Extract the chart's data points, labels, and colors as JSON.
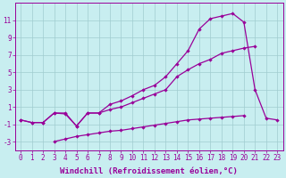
{
  "xlabel": "Windchill (Refroidissement éolien,°C)",
  "background_color": "#c8eef0",
  "grid_color": "#a0ccd0",
  "line_color": "#990099",
  "x": [
    0,
    1,
    2,
    3,
    4,
    5,
    6,
    7,
    8,
    9,
    10,
    11,
    12,
    13,
    14,
    15,
    16,
    17,
    18,
    19,
    20,
    21,
    22,
    23
  ],
  "line_bottom": [
    null,
    null,
    null,
    -3.0,
    -2.7,
    -2.4,
    -2.2,
    -2.0,
    -1.8,
    -1.7,
    -1.5,
    -1.3,
    -1.1,
    -0.9,
    -0.7,
    -0.5,
    -0.4,
    -0.3,
    -0.2,
    -0.1,
    0.0,
    null,
    null,
    null
  ],
  "line_mid": [
    -0.5,
    -0.8,
    -0.8,
    0.3,
    0.2,
    -1.2,
    0.3,
    0.3,
    0.7,
    1.0,
    1.5,
    2.0,
    2.5,
    3.0,
    4.5,
    5.3,
    6.0,
    6.5,
    7.2,
    7.5,
    7.8,
    8.0,
    null,
    null
  ],
  "line_top": [
    -0.5,
    -0.8,
    -0.8,
    0.3,
    0.3,
    -1.2,
    0.3,
    0.3,
    1.3,
    1.7,
    2.3,
    3.0,
    3.5,
    4.5,
    6.0,
    7.5,
    10.0,
    11.2,
    11.5,
    11.8,
    10.8,
    3.0,
    -0.3,
    -0.5
  ],
  "ylim": [
    -4.0,
    13.0
  ],
  "xlim": [
    -0.5,
    23.5
  ],
  "yticks": [
    -3,
    -1,
    1,
    3,
    5,
    7,
    9,
    11
  ],
  "xticks": [
    0,
    1,
    2,
    3,
    4,
    5,
    6,
    7,
    8,
    9,
    10,
    11,
    12,
    13,
    14,
    15,
    16,
    17,
    18,
    19,
    20,
    21,
    22,
    23
  ],
  "fontsize_label": 6.5,
  "fontsize_tick": 5.5
}
